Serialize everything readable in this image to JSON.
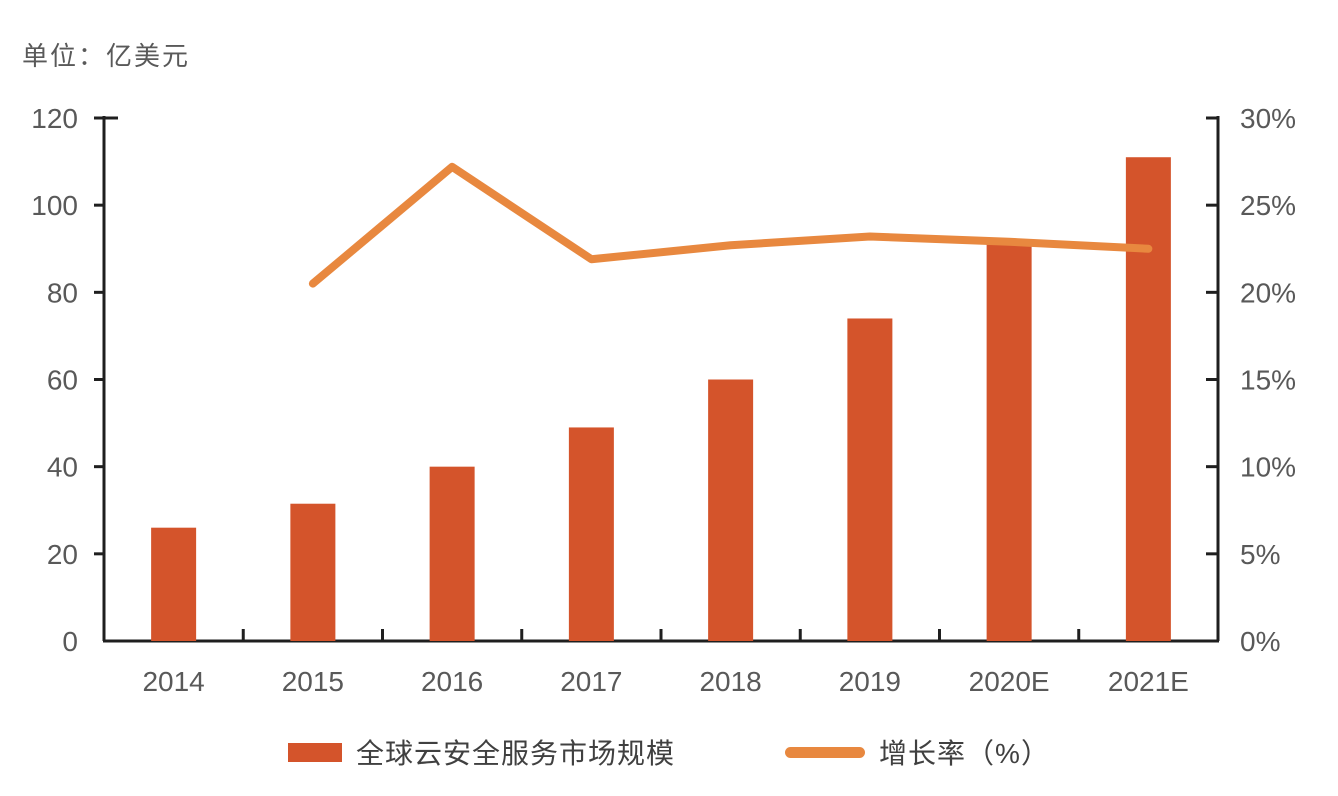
{
  "unit_label": "单位：亿美元",
  "chart_data": {
    "type": "bar+line",
    "title": "",
    "unit_label": "单位：亿美元",
    "categories": [
      "2014",
      "2015",
      "2016",
      "2017",
      "2018",
      "2019",
      "2020E",
      "2021E"
    ],
    "series": [
      {
        "name": "全球云安全服务市场规模",
        "type": "bar",
        "axis": "left",
        "values": [
          26,
          31.5,
          40,
          49,
          60,
          74,
          91,
          111
        ],
        "color": "#D4542B"
      },
      {
        "name": "增长率（%）",
        "type": "line",
        "axis": "right",
        "values": [
          null,
          20.5,
          27.2,
          21.9,
          22.7,
          23.2,
          22.9,
          22.5
        ],
        "color": "#E8883F"
      }
    ],
    "left_axis": {
      "min": 0,
      "max": 120,
      "step": 20,
      "tick_labels": [
        "0",
        "20",
        "40",
        "60",
        "80",
        "100",
        "120"
      ]
    },
    "right_axis": {
      "min": 0,
      "max": 30,
      "step": 5,
      "tick_labels": [
        "0%",
        "5%",
        "10%",
        "15%",
        "20%",
        "25%",
        "30%"
      ]
    },
    "grid": false,
    "legend_position": "bottom",
    "legend": [
      "全球云安全服务市场规模",
      "增长率（%）"
    ]
  },
  "colors": {
    "axis": "#1f1f1f",
    "tick_label": "#595959",
    "unit_label": "#595959",
    "legend_text": "#404040"
  }
}
